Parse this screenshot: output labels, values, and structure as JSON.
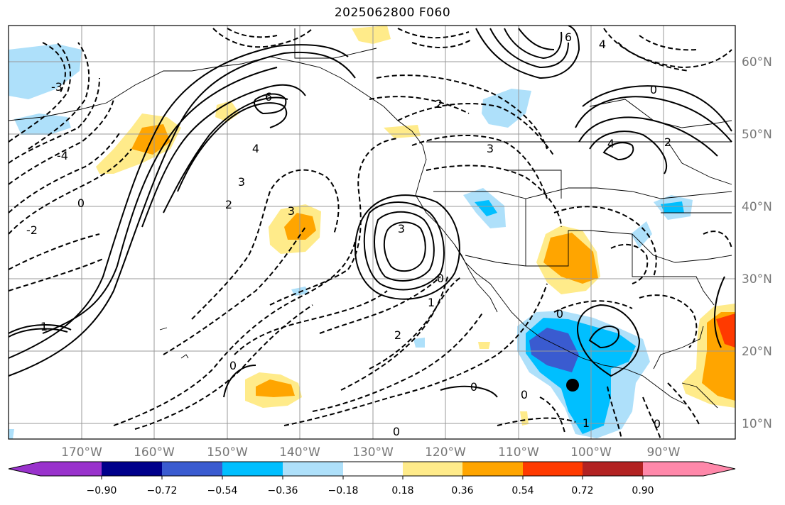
{
  "title": "2025062800 F060",
  "map": {
    "lon_labels": [
      "170°W",
      "160°W",
      "150°W",
      "140°W",
      "130°W",
      "120°W",
      "110°W",
      "100°W",
      "90°W"
    ],
    "lat_labels": [
      "60°N",
      "50°N",
      "40°N",
      "30°N",
      "20°N",
      "10°N"
    ],
    "contour_labels": [
      "0",
      "1",
      "2",
      "3",
      "4",
      "6",
      "-1",
      "-2",
      "-3",
      "-4"
    ],
    "marker": "storm-center-dot"
  },
  "colorbar": {
    "ticks": [
      "−0.90",
      "−0.72",
      "−0.54",
      "−0.36",
      "−0.18",
      "0.18",
      "0.36",
      "0.54",
      "0.72",
      "0.90"
    ],
    "colors": [
      "#9932cc",
      "#00008b",
      "#3a5bd0",
      "#00bfff",
      "#aee0fa",
      "#ffffff",
      "#ffeb8a",
      "#ffa500",
      "#ff3a00",
      "#b22222",
      "#ff88aa"
    ]
  }
}
